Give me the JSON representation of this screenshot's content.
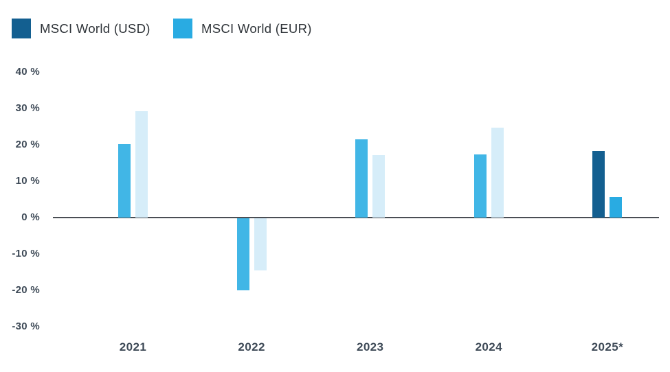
{
  "legend": {
    "items": [
      {
        "label": "MSCI World (USD)",
        "color": "#135f90"
      },
      {
        "label": "MSCI World (EUR)",
        "color": "#29abe2"
      }
    ]
  },
  "chart_data": {
    "type": "bar",
    "title": "",
    "categories": [
      "2021",
      "2022",
      "2023",
      "2024",
      "2025*"
    ],
    "series": [
      {
        "name": "MSCI World (USD)",
        "values": [
          20.1,
          -19.8,
          21.6,
          17.4,
          18.3
        ]
      },
      {
        "name": "MSCI World (EUR)",
        "values": [
          29.3,
          -14.3,
          17.2,
          24.8,
          5.6
        ]
      }
    ],
    "y_tick_labels": [
      "40 %",
      "30 %",
      "20 %",
      "10 %",
      "0 %",
      "-10 %",
      "-20 %",
      "-30 %"
    ],
    "y_tick_values": [
      40,
      30,
      20,
      10,
      0,
      -10,
      -20,
      -30
    ],
    "ylim": [
      -32,
      42
    ],
    "grid": false,
    "legend_position": "top-left",
    "current_category": "2025*",
    "colors": {
      "usd_current": "#135f90",
      "eur_current": "#29abe2",
      "usd_past": "#41b6e6",
      "eur_past": "#d6edf9",
      "axis_line": "#4a4e54",
      "tick_text": "#3e4a57",
      "legend_text": "#2e3338"
    }
  }
}
